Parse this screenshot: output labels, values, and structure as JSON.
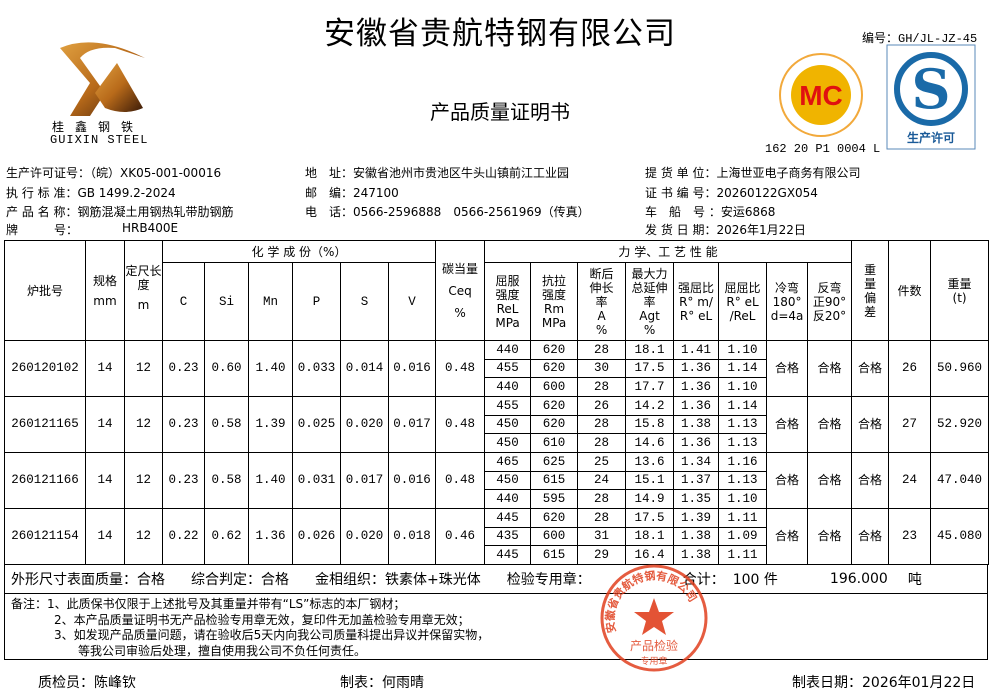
{
  "header": {
    "company": "安徽省贵航特钢有限公司",
    "doc_title": "产品质量证明书",
    "code": "编号：GH/JL-JZ-45",
    "mc_cert_no": "162 20 P1 0004 L"
  },
  "logo": {
    "cn": "桂鑫钢铁",
    "en": "GUIXIN STEEL"
  },
  "mc_logo": {
    "text": "MC",
    "ring_cn": "冶金产品认证",
    "ring_en": "Metallurgical Product Certification"
  },
  "qs_logo": {
    "text": "生产许可"
  },
  "info": {
    "license": "生产许可证号：（皖）XK05-001-00016",
    "standard": "执 行 标 准：GB 1499.2-2024",
    "product": "产 品 名 称：钢筋混凝土用钢热轧带肋钢筋",
    "grade_label": "牌　　　号：",
    "grade": "HRB400E",
    "address": "地　址：安徽省池州市贵池区牛头山镇前江工业园",
    "postcode": "邮　编：247100",
    "phone": "电　话：0566-2596888　0566-2561969（传真）",
    "customer": "提 货 单 位：上海世亚电子商务有限公司",
    "cert_no": "证 书 编 号：20260122GX054",
    "vehicle": "车　船　号 ：安运6868",
    "ship_date": "发 货 日 期：2026年1月22日"
  },
  "table": {
    "h_batch": "炉批号",
    "h_size": "规格",
    "h_size_unit": "mm",
    "h_len": "定尺长度",
    "h_len_unit": "m",
    "h_chem": "化 学 成 份（%）",
    "chem_cols": [
      "C",
      "Si",
      "Mn",
      "P",
      "S",
      "V"
    ],
    "h_ceq": "碳当量",
    "h_ceq2": "Ceq",
    "h_ceq3": "%",
    "h_mech": "力 学、工 艺 性 能",
    "mech_cols": [
      "屈服强度ReLMPa",
      "抗拉强度RmMPa",
      "断后伸长率A%",
      "最大力总延伸率Agt%",
      "强屈比R°m/R°eL",
      "屈屈比R°eL/ReL",
      "冷弯180°d=4a",
      "反弯正90°反20°"
    ],
    "mech_cols_lines": [
      [
        "屈服",
        "强度",
        "ReL",
        "MPa"
      ],
      [
        "抗拉",
        "强度",
        "Rm",
        "MPa"
      ],
      [
        "断后",
        "伸长",
        "率",
        "A",
        "%"
      ],
      [
        "最大力",
        "总延伸",
        "率",
        "Agt",
        "%"
      ],
      [
        "强屈比",
        "R° m/",
        "R° eL"
      ],
      [
        "屈屈比",
        "R° eL",
        "/ReL"
      ],
      [
        "冷弯",
        "180°",
        "d=4a"
      ],
      [
        "反弯",
        "正90°",
        "反20°"
      ]
    ],
    "h_dev": "重量偏差",
    "h_pcs": "件数",
    "h_weight": "重量",
    "h_weight_unit": "(t)",
    "rows": [
      {
        "batch": "260120102",
        "size": "14",
        "len": "12",
        "chem": [
          "0.23",
          "0.60",
          "1.40",
          "0.033",
          "0.014",
          "0.016"
        ],
        "ceq": "0.48",
        "mech": [
          [
            "440",
            "620",
            "28",
            "18.1",
            "1.41",
            "1.10"
          ],
          [
            "455",
            "620",
            "30",
            "17.5",
            "1.36",
            "1.14"
          ],
          [
            "440",
            "600",
            "28",
            "17.7",
            "1.36",
            "1.10"
          ]
        ],
        "cold": "合格",
        "rev": "合格",
        "dev": "合格",
        "pcs": "26",
        "weight": "50.960"
      },
      {
        "batch": "260121165",
        "size": "14",
        "len": "12",
        "chem": [
          "0.23",
          "0.58",
          "1.39",
          "0.025",
          "0.020",
          "0.017"
        ],
        "ceq": "0.48",
        "mech": [
          [
            "455",
            "620",
            "26",
            "14.2",
            "1.36",
            "1.14"
          ],
          [
            "450",
            "620",
            "28",
            "15.8",
            "1.38",
            "1.13"
          ],
          [
            "450",
            "610",
            "28",
            "14.6",
            "1.36",
            "1.13"
          ]
        ],
        "cold": "合格",
        "rev": "合格",
        "dev": "合格",
        "pcs": "27",
        "weight": "52.920"
      },
      {
        "batch": "260121166",
        "size": "14",
        "len": "12",
        "chem": [
          "0.23",
          "0.58",
          "1.40",
          "0.031",
          "0.017",
          "0.016"
        ],
        "ceq": "0.48",
        "mech": [
          [
            "465",
            "625",
            "25",
            "13.6",
            "1.34",
            "1.16"
          ],
          [
            "450",
            "615",
            "24",
            "15.1",
            "1.37",
            "1.13"
          ],
          [
            "440",
            "595",
            "28",
            "14.9",
            "1.35",
            "1.10"
          ]
        ],
        "cold": "合格",
        "rev": "合格",
        "dev": "合格",
        "pcs": "24",
        "weight": "47.040"
      },
      {
        "batch": "260121154",
        "size": "14",
        "len": "12",
        "chem": [
          "0.22",
          "0.62",
          "1.36",
          "0.026",
          "0.020",
          "0.018"
        ],
        "ceq": "0.46",
        "mech": [
          [
            "445",
            "620",
            "28",
            "17.5",
            "1.39",
            "1.11"
          ],
          [
            "435",
            "600",
            "31",
            "18.1",
            "1.38",
            "1.09"
          ],
          [
            "445",
            "615",
            "29",
            "16.4",
            "1.38",
            "1.11"
          ]
        ],
        "cold": "合格",
        "rev": "合格",
        "dev": "合格",
        "pcs": "23",
        "weight": "45.080"
      }
    ]
  },
  "footer": {
    "appearance": "外形尺寸表面质量：合格",
    "judgement": "综合判定：合格",
    "structure": "金相组织：铁素体+珠光体",
    "stamp_label": "检验专用章：",
    "total_label": "合计：",
    "total_pcs": "100 件",
    "total_weight": "196.000",
    "total_unit": "吨",
    "notes": [
      "备注：1、此质保书仅限于上述批号及其重量并带有“LS”标志的本厂钢材；",
      "2、本产品质量证明书无产品检验专用章无效，复印件无加盖检验专用章无效；",
      "3、如发现产品质量问题，请在验收后5天内向我公司质量科提出异议并保留实物，",
      "等我公司审验后处理，擅自使用我公司不负任何责任。"
    ],
    "inspector": "质检员：陈峰钦",
    "maker": "制表：何雨晴",
    "date": "制表日期：2026年01月22日"
  },
  "stamp": {
    "ring": "安徽省贵航特钢有限公司",
    "center1": "产品检验",
    "center2": "专用章",
    "color": "#e0401f"
  }
}
